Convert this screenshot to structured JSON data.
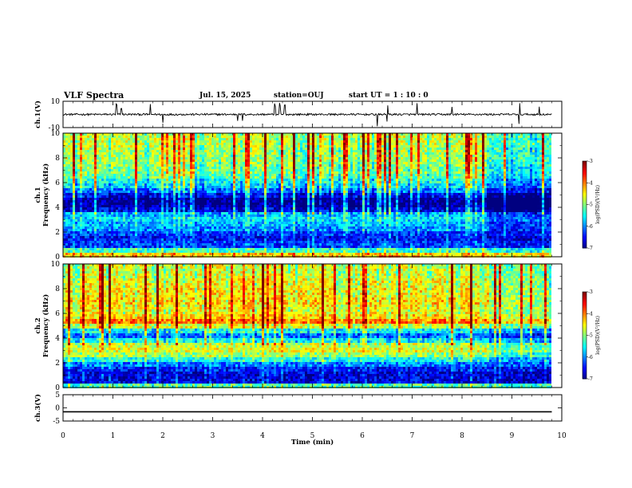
{
  "header": {
    "title": "VLF Spectra",
    "date": "Jul. 15, 2025",
    "station": "station=OUJ",
    "start": "start UT =  1 : 10 : 0"
  },
  "chart_data": [
    {
      "type": "line",
      "name": "ch1-waveform",
      "ylabel": "ch.1(V)",
      "ylim": [
        -10,
        10
      ],
      "ytick_labels": [
        "10",
        "-10"
      ],
      "baseline": 0,
      "noise_amplitude": 1.2,
      "spikes_min": [
        1.07,
        1.17,
        1.75,
        2.0,
        3.5,
        3.6,
        4.25,
        4.35,
        4.45,
        6.3,
        6.5,
        7.1,
        7.8,
        9.15,
        9.55
      ]
    },
    {
      "type": "heatmap",
      "name": "ch1-spectrogram",
      "ylabel_line1": "ch.1",
      "ylabel_line2": "Frequency (kHz)",
      "ylim": [
        0,
        10
      ],
      "ytick_labels": [
        "0",
        "2",
        "4",
        "6",
        "8",
        "10"
      ],
      "data_end_min": 9.8,
      "change_min": 8.5,
      "band_profile_log_psd": [
        {
          "f": 0.2,
          "v": -4.3
        },
        {
          "f": 0.6,
          "v": -5.3
        },
        {
          "f": 1.0,
          "v": -6.3
        },
        {
          "f": 1.4,
          "v": -6.5
        },
        {
          "f": 1.8,
          "v": -6.3
        },
        {
          "f": 2.2,
          "v": -5.9
        },
        {
          "f": 2.6,
          "v": -5.8
        },
        {
          "f": 3.0,
          "v": -5.6
        },
        {
          "f": 3.4,
          "v": -5.8
        },
        {
          "f": 3.8,
          "v": -6.6
        },
        {
          "f": 4.2,
          "v": -6.9
        },
        {
          "f": 4.6,
          "v": -6.9
        },
        {
          "f": 5.0,
          "v": -6.5
        },
        {
          "f": 5.4,
          "v": -6.0
        },
        {
          "f": 5.8,
          "v": -5.6
        },
        {
          "f": 6.2,
          "v": -5.4
        },
        {
          "f": 6.6,
          "v": -5.1
        },
        {
          "f": 7.0,
          "v": -5.0
        },
        {
          "f": 7.4,
          "v": -4.9
        },
        {
          "f": 7.8,
          "v": -4.8
        },
        {
          "f": 8.2,
          "v": -4.8
        },
        {
          "f": 8.6,
          "v": -4.8
        },
        {
          "f": 9.0,
          "v": -4.7
        },
        {
          "f": 9.4,
          "v": -4.7
        },
        {
          "f": 9.8,
          "v": -4.7
        }
      ],
      "colorbar": {
        "label": "log(PSD)(V²/Hz)",
        "range": [
          -7,
          -3
        ],
        "tick_labels": [
          "-3",
          "-4",
          "-5",
          "-6",
          "-7"
        ]
      }
    },
    {
      "type": "heatmap",
      "name": "ch2-spectrogram",
      "ylabel_line1": "ch.2",
      "ylabel_line2": "Frequency (kHz)",
      "ylim": [
        0,
        10
      ],
      "ytick_labels": [
        "0",
        "2",
        "4",
        "6",
        "8",
        "10"
      ],
      "data_end_min": 9.8,
      "change_min": 8.5,
      "band_profile_log_psd": [
        {
          "f": 0.2,
          "v": -5.2
        },
        {
          "f": 0.6,
          "v": -6.6
        },
        {
          "f": 1.0,
          "v": -6.6
        },
        {
          "f": 1.4,
          "v": -6.4
        },
        {
          "f": 1.8,
          "v": -6.0
        },
        {
          "f": 2.2,
          "v": -5.4
        },
        {
          "f": 2.6,
          "v": -4.9
        },
        {
          "f": 3.0,
          "v": -4.6
        },
        {
          "f": 3.4,
          "v": -4.7
        },
        {
          "f": 3.8,
          "v": -5.4
        },
        {
          "f": 4.2,
          "v": -6.0
        },
        {
          "f": 4.6,
          "v": -5.4
        },
        {
          "f": 5.0,
          "v": -4.6
        },
        {
          "f": 5.4,
          "v": -3.9
        },
        {
          "f": 5.8,
          "v": -4.3
        },
        {
          "f": 6.2,
          "v": -4.5
        },
        {
          "f": 6.6,
          "v": -4.4
        },
        {
          "f": 7.0,
          "v": -4.3
        },
        {
          "f": 7.4,
          "v": -4.4
        },
        {
          "f": 7.8,
          "v": -4.4
        },
        {
          "f": 8.2,
          "v": -4.5
        },
        {
          "f": 8.6,
          "v": -4.5
        },
        {
          "f": 9.0,
          "v": -4.6
        },
        {
          "f": 9.4,
          "v": -4.6
        },
        {
          "f": 9.8,
          "v": -4.6
        }
      ],
      "colorbar": {
        "label": "log(PSD)(V²/Hz)",
        "range": [
          -7,
          -3
        ],
        "tick_labels": [
          "-3",
          "-4",
          "-5",
          "-6",
          "-7"
        ]
      }
    },
    {
      "type": "line",
      "name": "ch3-waveform",
      "ylabel": "ch.3(V)",
      "ylim": [
        -5,
        5
      ],
      "ytick_labels": [
        "5",
        "0",
        "-5"
      ],
      "baseline": -1.5,
      "noise_amplitude": 0
    }
  ],
  "xaxis": {
    "label": "Time (min)",
    "range": [
      0,
      10
    ],
    "tick_labels": [
      "0",
      "1",
      "2",
      "3",
      "4",
      "5",
      "6",
      "7",
      "8",
      "9",
      "10"
    ]
  }
}
